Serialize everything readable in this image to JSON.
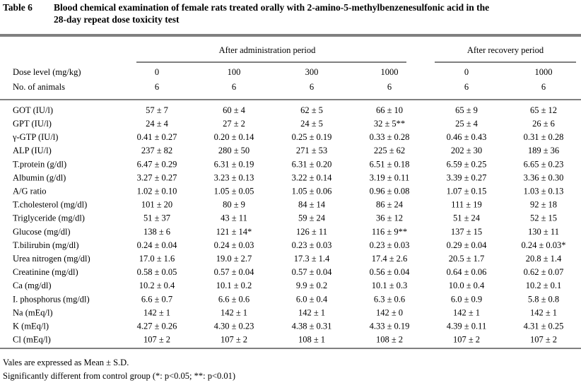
{
  "title": {
    "label": "Table 6",
    "lines": [
      "Blood chemical examination of female rats treated orally with 2-amino-5-methylbenzenesulfonic acid in the",
      "28-day repeat dose toxicity test"
    ]
  },
  "header": {
    "groups": [
      "After administration period",
      "After recovery period"
    ],
    "dose_label": "Dose level (mg/kg)",
    "doses": [
      "0",
      "100",
      "300",
      "1000",
      "0",
      "1000"
    ],
    "animals_label": "No. of animals",
    "animals": [
      "6",
      "6",
      "6",
      "6",
      "6",
      "6"
    ]
  },
  "rows": [
    {
      "label": "GOT (IU/l)",
      "cells": [
        "57 ± 7",
        "60 ± 4",
        "62 ± 5",
        "66 ± 10",
        "65 ± 9",
        "65 ± 12"
      ]
    },
    {
      "label": "GPT (IU/l)",
      "cells": [
        "24 ± 4",
        "27 ± 2",
        "24 ± 5",
        "32 ± 5**",
        "25 ± 4",
        "26 ± 6"
      ]
    },
    {
      "label": "γ-GTP (IU/l)",
      "cells": [
        "0.41 ± 0.27",
        "0.20 ± 0.14",
        "0.25 ± 0.19",
        "0.33 ± 0.28",
        "0.46 ± 0.43",
        "0.31 ± 0.28"
      ]
    },
    {
      "label": "ALP (IU/l)",
      "cells": [
        "237 ± 82",
        "280 ± 50",
        "271 ± 53",
        "225 ± 62",
        "202 ± 30",
        "189 ± 36"
      ]
    },
    {
      "label": "T.protein (g/dl)",
      "cells": [
        "6.47 ± 0.29",
        "6.31 ± 0.19",
        "6.31 ± 0.20",
        "6.51 ± 0.18",
        "6.59 ± 0.25",
        "6.65 ± 0.23"
      ]
    },
    {
      "label": "Albumin (g/dl)",
      "cells": [
        "3.27 ± 0.27",
        "3.23 ± 0.13",
        "3.22 ± 0.14",
        "3.19 ± 0.11",
        "3.39 ± 0.27",
        "3.36 ± 0.30"
      ]
    },
    {
      "label": "A/G ratio",
      "cells": [
        "1.02 ± 0.10",
        "1.05 ± 0.05",
        "1.05 ± 0.06",
        "0.96 ± 0.08",
        "1.07 ± 0.15",
        "1.03 ± 0.13"
      ]
    },
    {
      "label": "T.cholesterol (mg/dl)",
      "cells": [
        "101 ± 20",
        "80 ± 9",
        "84 ± 14",
        "86 ± 24",
        "111 ± 19",
        "92 ± 18"
      ]
    },
    {
      "label": "Triglyceride (mg/dl)",
      "cells": [
        "51 ± 37",
        "43 ± 11",
        "59 ± 24",
        "36 ± 12",
        "51 ± 24",
        "52 ± 15"
      ]
    },
    {
      "label": "Glucose (mg/dl)",
      "cells": [
        "138 ± 6",
        "121 ± 14*",
        "126 ± 11",
        "116 ± 9**",
        "137 ± 15",
        "130 ± 11"
      ]
    },
    {
      "label": "T.bilirubin (mg/dl)",
      "cells": [
        "0.24 ± 0.04",
        "0.24 ± 0.03",
        "0.23 ± 0.03",
        "0.23 ± 0.03",
        "0.29 ± 0.04",
        "0.24 ± 0.03*"
      ]
    },
    {
      "label": "Urea nitrogen (mg/dl)",
      "cells": [
        "17.0 ± 1.6",
        "19.0 ± 2.7",
        "17.3 ± 1.4",
        "17.4 ± 2.6",
        "20.5 ± 1.7",
        "20.8 ± 1.4"
      ]
    },
    {
      "label": "Creatinine (mg/dl)",
      "cells": [
        "0.58 ± 0.05",
        "0.57 ± 0.04",
        "0.57 ± 0.04",
        "0.56 ± 0.04",
        "0.64 ± 0.06",
        "0.62 ± 0.07"
      ]
    },
    {
      "label": "Ca (mg/dl)",
      "cells": [
        "10.2 ± 0.4",
        "10.1 ± 0.2",
        "9.9 ± 0.2",
        "10.1 ± 0.3",
        "10.0 ± 0.4",
        "10.2 ± 0.1"
      ]
    },
    {
      "label": "I. phosphorus (mg/dl)",
      "cells": [
        "6.6 ± 0.7",
        "6.6 ± 0.6",
        "6.0 ± 0.4",
        "6.3 ± 0.6",
        "6.0 ± 0.9",
        "5.8 ± 0.8"
      ]
    },
    {
      "label": "Na (mEq/l)",
      "cells": [
        "142 ± 1",
        "142 ± 1",
        "142 ± 1",
        "142 ± 0",
        "142 ± 1",
        "142 ± 1"
      ]
    },
    {
      "label": "K (mEq/l)",
      "cells": [
        "4.27 ± 0.26",
        "4.30 ± 0.23",
        "4.38 ± 0.31",
        "4.33 ± 0.19",
        "4.39 ± 0.11",
        "4.31 ± 0.25"
      ]
    },
    {
      "label": "Cl (mEq/l)",
      "cells": [
        "107 ± 2",
        "107 ± 2",
        "108 ± 1",
        "108 ± 2",
        "107 ± 2",
        "107 ± 2"
      ]
    }
  ],
  "notes": [
    "Vales are expressed as Mean ± S.D.",
    "Significantly different from control group (*: p<0.05; **: p<0.01)"
  ]
}
